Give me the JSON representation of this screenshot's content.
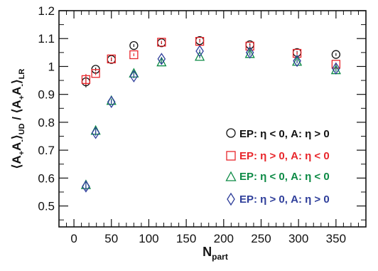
{
  "chart_data": {
    "type": "scatter",
    "title": "",
    "xlabel": "N",
    "xlabel_sub": "part",
    "ylabel_parts": [
      "⟨A",
      "+",
      "A",
      "-",
      "⟩",
      "UD",
      " / ⟨A",
      "+",
      "A",
      "-",
      "⟩",
      "LR"
    ],
    "xlim": [
      -20,
      390
    ],
    "ylim": [
      0.425,
      1.2
    ],
    "xticks": [
      0,
      50,
      100,
      150,
      200,
      250,
      300,
      350
    ],
    "yticks": [
      0.5,
      0.6,
      0.7,
      0.8,
      0.9,
      1,
      1.1,
      1.2
    ],
    "ytick_labels": [
      "0.5",
      "0.6",
      "0.7",
      "0.8",
      "0.9",
      "1",
      "1.1",
      "1.2"
    ],
    "grid": false,
    "legend_position": "right-middle",
    "series": [
      {
        "name": "EP: η < 0, A: η > 0",
        "legend_parts": [
          [
            "EP: η < 0, A: η > 0",
            "#111111"
          ]
        ],
        "marker": "circle",
        "color": "#111111",
        "x": [
          16,
          29,
          50,
          80,
          117,
          168,
          235,
          298,
          350
        ],
        "y": [
          0.945,
          0.99,
          1.025,
          1.075,
          1.085,
          1.093,
          1.078,
          1.05,
          1.043
        ],
        "err": [
          0.02,
          0.006,
          0.006,
          0.005,
          0.005,
          0.005,
          0.005,
          0.005,
          0.005
        ]
      },
      {
        "name": "EP: η > 0, A: η < 0",
        "legend_parts": [
          [
            "EP: η > 0, A: η < 0",
            "#e8262b"
          ]
        ],
        "marker": "square",
        "color": "#e8262b",
        "x": [
          16,
          29,
          50,
          80,
          117,
          168,
          235,
          298,
          350
        ],
        "y": [
          0.953,
          0.975,
          1.027,
          1.042,
          1.087,
          1.09,
          1.073,
          1.047,
          1.008
        ],
        "err": [
          0.02,
          0.006,
          0.006,
          0.005,
          0.005,
          0.005,
          0.005,
          0.005,
          0.005
        ]
      },
      {
        "name": "EP: η < 0, A: η < 0",
        "legend_parts": [
          [
            "EP: η < 0, A: η < 0",
            "#0c8a45"
          ]
        ],
        "marker": "triangle",
        "color": "#0c8a45",
        "x": [
          16,
          29,
          50,
          80,
          117,
          168,
          235,
          298,
          350
        ],
        "y": [
          0.575,
          0.77,
          0.877,
          0.975,
          1.015,
          1.035,
          1.045,
          1.017,
          0.987
        ],
        "err": [
          0.014,
          0.01,
          0.008,
          0.007,
          0.006,
          0.006,
          0.006,
          0.006,
          0.006
        ]
      },
      {
        "name": "EP: η > 0, A: η > 0",
        "legend_parts": [
          [
            "EP: η > 0, A: η > 0",
            "#2e3e9a"
          ]
        ],
        "marker": "diamond",
        "color": "#2e3e9a",
        "x": [
          16,
          29,
          50,
          80,
          117,
          168,
          235,
          298,
          350
        ],
        "y": [
          0.57,
          0.762,
          0.873,
          0.965,
          1.027,
          1.055,
          1.05,
          1.02,
          0.993
        ],
        "err": [
          0.014,
          0.01,
          0.008,
          0.007,
          0.006,
          0.006,
          0.006,
          0.006,
          0.006
        ]
      }
    ]
  }
}
